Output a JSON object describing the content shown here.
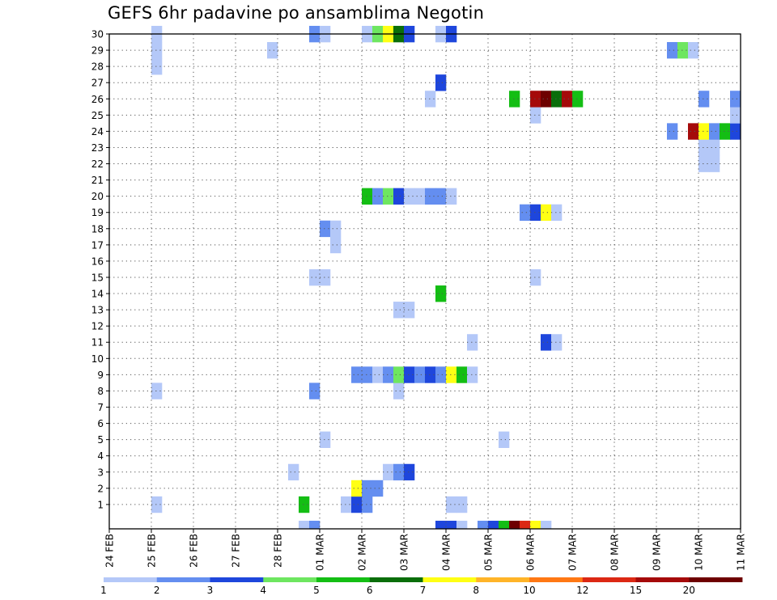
{
  "chart_data": {
    "type": "heatmap",
    "title": "GEFS 6hr padavine po ansamblima Negotin",
    "xlabel": "",
    "ylabel": "",
    "x_ticks": [
      "24 FEB",
      "25 FEB",
      "26 FEB",
      "27 FEB",
      "28 FEB",
      "01 MAR",
      "02 MAR",
      "03 MAR",
      "04 MAR",
      "05 MAR",
      "06 MAR",
      "07 MAR",
      "08 MAR",
      "09 MAR",
      "10 MAR",
      "11 MAR"
    ],
    "y_ticks": [
      "1",
      "2",
      "3",
      "4",
      "5",
      "6",
      "7",
      "8",
      "9",
      "10",
      "11",
      "12",
      "13",
      "14",
      "15",
      "16",
      "17",
      "18",
      "19",
      "20",
      "21",
      "22",
      "23",
      "24",
      "25",
      "26",
      "27",
      "28",
      "29",
      "30"
    ],
    "xlim": [
      0,
      60
    ],
    "ylim": [
      0,
      30
    ],
    "grid": true,
    "colorbar": {
      "labels": [
        "1",
        "2",
        "3",
        "4",
        "5",
        "6",
        "7",
        "8",
        "10",
        "12",
        "15",
        "20"
      ],
      "colors": [
        "#b4c8f8",
        "#648ef0",
        "#1e46dc",
        "#6ee660",
        "#14be14",
        "#0a6e0a",
        "#ffff14",
        "#ffb428",
        "#ff7814",
        "#dc2814",
        "#a50a0a",
        "#6e0000"
      ]
    },
    "cells": [
      {
        "m": 1,
        "x": 4,
        "v": 1
      },
      {
        "m": 1,
        "x": 18,
        "v": 5
      },
      {
        "m": 1,
        "x": 22,
        "v": 1
      },
      {
        "m": 1,
        "x": 23,
        "v": 3
      },
      {
        "m": 1,
        "x": 24,
        "v": 2
      },
      {
        "m": 1,
        "x": 32,
        "v": 1
      },
      {
        "m": 1,
        "x": 33,
        "v": 1
      },
      {
        "m": 2,
        "x": 23,
        "v": 7
      },
      {
        "m": 2,
        "x": 24,
        "v": 2
      },
      {
        "m": 2,
        "x": 25,
        "v": 2
      },
      {
        "m": 3,
        "x": 17,
        "v": 1
      },
      {
        "m": 3,
        "x": 26,
        "v": 1
      },
      {
        "m": 3,
        "x": 27,
        "v": 2
      },
      {
        "m": 3,
        "x": 28,
        "v": 3
      },
      {
        "m": 5,
        "x": 20,
        "v": 1
      },
      {
        "m": 5,
        "x": 37,
        "v": 1
      },
      {
        "m": 8,
        "x": 4,
        "v": 1
      },
      {
        "m": 8,
        "x": 19,
        "v": 2
      },
      {
        "m": 8,
        "x": 27,
        "v": 1
      },
      {
        "m": 9,
        "x": 23,
        "v": 2
      },
      {
        "m": 9,
        "x": 24,
        "v": 2
      },
      {
        "m": 9,
        "x": 25,
        "v": 1
      },
      {
        "m": 9,
        "x": 26,
        "v": 2
      },
      {
        "m": 9,
        "x": 27,
        "v": 4
      },
      {
        "m": 9,
        "x": 28,
        "v": 3
      },
      {
        "m": 9,
        "x": 29,
        "v": 2
      },
      {
        "m": 9,
        "x": 30,
        "v": 3
      },
      {
        "m": 9,
        "x": 31,
        "v": 2
      },
      {
        "m": 9,
        "x": 32,
        "v": 7
      },
      {
        "m": 9,
        "x": 33,
        "v": 5
      },
      {
        "m": 9,
        "x": 34,
        "v": 1
      },
      {
        "m": 11,
        "x": 34,
        "v": 1
      },
      {
        "m": 11,
        "x": 41,
        "v": 3
      },
      {
        "m": 11,
        "x": 42,
        "v": 1
      },
      {
        "m": 13,
        "x": 27,
        "v": 1
      },
      {
        "m": 13,
        "x": 28,
        "v": 1
      },
      {
        "m": 14,
        "x": 31,
        "v": 5
      },
      {
        "m": 15,
        "x": 19,
        "v": 1
      },
      {
        "m": 15,
        "x": 20,
        "v": 1
      },
      {
        "m": 15,
        "x": 40,
        "v": 1
      },
      {
        "m": 17,
        "x": 21,
        "v": 1
      },
      {
        "m": 18,
        "x": 20,
        "v": 2
      },
      {
        "m": 18,
        "x": 21,
        "v": 1
      },
      {
        "m": 19,
        "x": 39,
        "v": 2
      },
      {
        "m": 19,
        "x": 40,
        "v": 3
      },
      {
        "m": 19,
        "x": 41,
        "v": 7
      },
      {
        "m": 19,
        "x": 42,
        "v": 1
      },
      {
        "m": 20,
        "x": 24,
        "v": 5
      },
      {
        "m": 20,
        "x": 25,
        "v": 2
      },
      {
        "m": 20,
        "x": 26,
        "v": 4
      },
      {
        "m": 20,
        "x": 27,
        "v": 3
      },
      {
        "m": 20,
        "x": 28,
        "v": 1
      },
      {
        "m": 20,
        "x": 29,
        "v": 1
      },
      {
        "m": 20,
        "x": 30,
        "v": 2
      },
      {
        "m": 20,
        "x": 31,
        "v": 2
      },
      {
        "m": 20,
        "x": 32,
        "v": 1
      },
      {
        "m": 22,
        "x": 56,
        "v": 1
      },
      {
        "m": 22,
        "x": 57,
        "v": 1
      },
      {
        "m": 23,
        "x": 56,
        "v": 1
      },
      {
        "m": 23,
        "x": 57,
        "v": 1
      },
      {
        "m": 24,
        "x": 53,
        "v": 2
      },
      {
        "m": 24,
        "x": 55,
        "v": 15
      },
      {
        "m": 24,
        "x": 56,
        "v": 7
      },
      {
        "m": 24,
        "x": 57,
        "v": 2
      },
      {
        "m": 24,
        "x": 58,
        "v": 5
      },
      {
        "m": 24,
        "x": 59,
        "v": 3
      },
      {
        "m": 25,
        "x": 40,
        "v": 1
      },
      {
        "m": 25,
        "x": 59,
        "v": 1
      },
      {
        "m": 26,
        "x": 30,
        "v": 1
      },
      {
        "m": 26,
        "x": 38,
        "v": 5
      },
      {
        "m": 26,
        "x": 40,
        "v": 15
      },
      {
        "m": 26,
        "x": 41,
        "v": 20
      },
      {
        "m": 26,
        "x": 42,
        "v": 6
      },
      {
        "m": 26,
        "x": 43,
        "v": 15
      },
      {
        "m": 26,
        "x": 44,
        "v": 5
      },
      {
        "m": 26,
        "x": 56,
        "v": 2
      },
      {
        "m": 26,
        "x": 59,
        "v": 2
      },
      {
        "m": 27,
        "x": 31,
        "v": 3
      },
      {
        "m": 28,
        "x": 4,
        "v": 1
      },
      {
        "m": 29,
        "x": 4,
        "v": 1
      },
      {
        "m": 29,
        "x": 15,
        "v": 1
      },
      {
        "m": 29,
        "x": 53,
        "v": 2
      },
      {
        "m": 29,
        "x": 54,
        "v": 4
      },
      {
        "m": 29,
        "x": 55,
        "v": 1
      },
      {
        "m": 30,
        "x": 4,
        "v": 1
      },
      {
        "m": 30,
        "x": 19,
        "v": 2
      },
      {
        "m": 30,
        "x": 20,
        "v": 1
      },
      {
        "m": 30,
        "x": 24,
        "v": 1
      },
      {
        "m": 30,
        "x": 25,
        "v": 4
      },
      {
        "m": 30,
        "x": 26,
        "v": 7
      },
      {
        "m": 30,
        "x": 27,
        "v": 6
      },
      {
        "m": 30,
        "x": 28,
        "v": 3
      },
      {
        "m": 30,
        "x": 31,
        "v": 1
      },
      {
        "m": 30,
        "x": 32,
        "v": 3
      },
      {
        "m": 0,
        "x": 18,
        "v": 1
      },
      {
        "m": 0,
        "x": 19,
        "v": 2
      },
      {
        "m": 0,
        "x": 31,
        "v": 3
      },
      {
        "m": 0,
        "x": 32,
        "v": 3
      },
      {
        "m": 0,
        "x": 33,
        "v": 1
      },
      {
        "m": 0,
        "x": 35,
        "v": 2
      },
      {
        "m": 0,
        "x": 36,
        "v": 3
      },
      {
        "m": 0,
        "x": 37,
        "v": 5
      },
      {
        "m": 0,
        "x": 38,
        "v": 20
      },
      {
        "m": 0,
        "x": 39,
        "v": 12
      },
      {
        "m": 0,
        "x": 40,
        "v": 7
      },
      {
        "m": 0,
        "x": 41,
        "v": 1
      }
    ]
  }
}
